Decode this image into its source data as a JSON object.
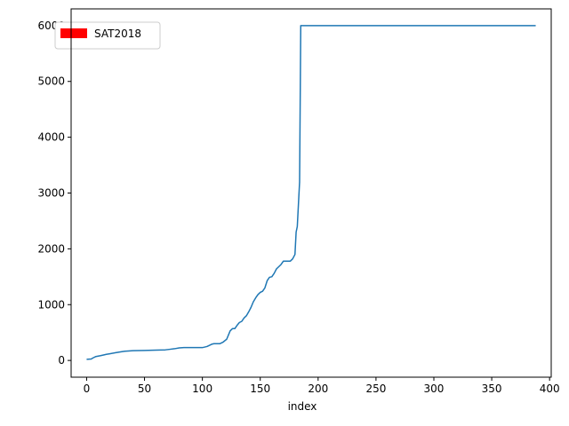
{
  "chart_data": {
    "type": "line",
    "title": "",
    "xlabel": "index",
    "ylabel": "",
    "xlim": [
      -13.4,
      401.4
    ],
    "ylim": [
      -300,
      6300
    ],
    "xticks": [
      0,
      50,
      100,
      150,
      200,
      250,
      300,
      350,
      400
    ],
    "yticks": [
      0,
      1000,
      2000,
      3000,
      4000,
      5000,
      6000
    ],
    "xtick_labels": [
      "0",
      "50",
      "100",
      "150",
      "200",
      "250",
      "300",
      "350",
      "400"
    ],
    "ytick_labels": [
      "0",
      "1000",
      "2000",
      "3000",
      "4000",
      "5000",
      "6000"
    ],
    "grid": false,
    "legend": {
      "position": "top-left",
      "entries": [
        {
          "label": "SAT2018",
          "color": "#ff0000"
        }
      ]
    },
    "series": [
      {
        "color": "#1f77b4",
        "x": [
          0,
          4,
          5,
          8,
          12,
          15,
          17,
          20,
          24,
          28,
          31,
          33,
          36,
          40,
          50,
          60,
          68,
          72,
          76,
          80,
          84,
          90,
          100,
          104,
          108,
          110,
          115,
          118,
          121,
          124,
          126,
          128,
          130,
          132,
          134,
          136,
          138,
          140,
          142,
          144,
          146,
          148,
          150,
          152,
          154,
          156,
          158,
          160,
          162,
          164,
          166,
          168,
          170,
          172,
          174,
          176,
          178,
          180,
          181,
          182,
          183,
          184,
          185,
          388
        ],
        "y": [
          20,
          25,
          40,
          70,
          85,
          100,
          110,
          120,
          135,
          150,
          160,
          165,
          170,
          175,
          180,
          185,
          190,
          200,
          210,
          225,
          230,
          230,
          230,
          250,
          290,
          300,
          300,
          330,
          380,
          530,
          570,
          570,
          630,
          680,
          700,
          760,
          800,
          870,
          950,
          1050,
          1120,
          1180,
          1220,
          1240,
          1300,
          1430,
          1490,
          1500,
          1560,
          1640,
          1680,
          1720,
          1780,
          1780,
          1780,
          1780,
          1820,
          1900,
          2300,
          2400,
          2800,
          3200,
          6000,
          6000
        ]
      }
    ]
  }
}
